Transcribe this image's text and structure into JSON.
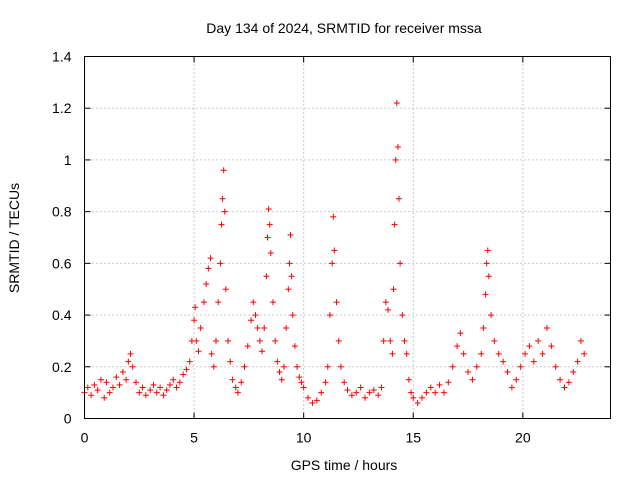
{
  "chart_data": {
    "type": "scatter",
    "title": "Day 134 of 2024, SRMTID for receiver mssa",
    "xlabel": "GPS time / hours",
    "ylabel": "SRMTID / TECUs",
    "xlim": [
      0,
      24
    ],
    "ylim": [
      0,
      1.4
    ],
    "xticks": [
      0,
      5,
      10,
      15,
      20
    ],
    "xtick_labels": [
      "0",
      "5",
      "10",
      "15",
      "20"
    ],
    "yticks": [
      0,
      0.2,
      0.4,
      0.6,
      0.8,
      1.0,
      1.2,
      1.4
    ],
    "ytick_labels": [
      "0",
      "0.2",
      "0.4",
      "0.6",
      "0.8",
      "1",
      "1.2",
      "1.4"
    ],
    "grid": true,
    "marker": "+",
    "color": "#ff0000",
    "series": [
      {
        "name": "SRMTID",
        "points": [
          [
            0.0,
            0.1
          ],
          [
            0.15,
            0.12
          ],
          [
            0.3,
            0.09
          ],
          [
            0.45,
            0.13
          ],
          [
            0.6,
            0.11
          ],
          [
            0.75,
            0.15
          ],
          [
            0.9,
            0.08
          ],
          [
            1.0,
            0.14
          ],
          [
            1.15,
            0.1
          ],
          [
            1.3,
            0.12
          ],
          [
            1.45,
            0.16
          ],
          [
            1.6,
            0.13
          ],
          [
            1.75,
            0.18
          ],
          [
            1.9,
            0.15
          ],
          [
            2.0,
            0.22
          ],
          [
            2.1,
            0.25
          ],
          [
            2.2,
            0.2
          ],
          [
            2.35,
            0.14
          ],
          [
            2.5,
            0.1
          ],
          [
            2.65,
            0.12
          ],
          [
            2.8,
            0.09
          ],
          [
            3.0,
            0.11
          ],
          [
            3.15,
            0.13
          ],
          [
            3.3,
            0.1
          ],
          [
            3.45,
            0.12
          ],
          [
            3.6,
            0.09
          ],
          [
            3.75,
            0.11
          ],
          [
            3.9,
            0.13
          ],
          [
            4.05,
            0.15
          ],
          [
            4.2,
            0.12
          ],
          [
            4.35,
            0.14
          ],
          [
            4.5,
            0.17
          ],
          [
            4.65,
            0.19
          ],
          [
            4.8,
            0.22
          ],
          [
            4.9,
            0.3
          ],
          [
            5.0,
            0.38
          ],
          [
            5.05,
            0.43
          ],
          [
            5.1,
            0.3
          ],
          [
            5.2,
            0.26
          ],
          [
            5.3,
            0.35
          ],
          [
            5.45,
            0.45
          ],
          [
            5.55,
            0.52
          ],
          [
            5.65,
            0.58
          ],
          [
            5.75,
            0.62
          ],
          [
            5.8,
            0.25
          ],
          [
            5.9,
            0.2
          ],
          [
            6.0,
            0.3
          ],
          [
            6.1,
            0.45
          ],
          [
            6.2,
            0.6
          ],
          [
            6.25,
            0.75
          ],
          [
            6.3,
            0.85
          ],
          [
            6.35,
            0.96
          ],
          [
            6.4,
            0.8
          ],
          [
            6.45,
            0.5
          ],
          [
            6.55,
            0.3
          ],
          [
            6.65,
            0.22
          ],
          [
            6.75,
            0.15
          ],
          [
            6.9,
            0.12
          ],
          [
            7.0,
            0.1
          ],
          [
            7.15,
            0.14
          ],
          [
            7.3,
            0.2
          ],
          [
            7.45,
            0.28
          ],
          [
            7.6,
            0.38
          ],
          [
            7.7,
            0.45
          ],
          [
            7.8,
            0.4
          ],
          [
            7.9,
            0.35
          ],
          [
            8.0,
            0.3
          ],
          [
            8.1,
            0.26
          ],
          [
            8.2,
            0.35
          ],
          [
            8.3,
            0.55
          ],
          [
            8.35,
            0.7
          ],
          [
            8.4,
            0.81
          ],
          [
            8.45,
            0.75
          ],
          [
            8.5,
            0.64
          ],
          [
            8.6,
            0.45
          ],
          [
            8.7,
            0.3
          ],
          [
            8.8,
            0.22
          ],
          [
            8.9,
            0.18
          ],
          [
            9.0,
            0.15
          ],
          [
            9.1,
            0.2
          ],
          [
            9.2,
            0.35
          ],
          [
            9.3,
            0.5
          ],
          [
            9.35,
            0.6
          ],
          [
            9.4,
            0.71
          ],
          [
            9.45,
            0.55
          ],
          [
            9.5,
            0.4
          ],
          [
            9.6,
            0.28
          ],
          [
            9.7,
            0.2
          ],
          [
            9.8,
            0.16
          ],
          [
            9.9,
            0.14
          ],
          [
            10.0,
            0.12
          ],
          [
            10.2,
            0.08
          ],
          [
            10.4,
            0.06
          ],
          [
            10.6,
            0.07
          ],
          [
            10.8,
            0.1
          ],
          [
            11.0,
            0.14
          ],
          [
            11.1,
            0.2
          ],
          [
            11.2,
            0.4
          ],
          [
            11.3,
            0.6
          ],
          [
            11.35,
            0.78
          ],
          [
            11.4,
            0.65
          ],
          [
            11.5,
            0.45
          ],
          [
            11.6,
            0.3
          ],
          [
            11.7,
            0.2
          ],
          [
            11.85,
            0.14
          ],
          [
            12.0,
            0.11
          ],
          [
            12.2,
            0.09
          ],
          [
            12.4,
            0.1
          ],
          [
            12.6,
            0.12
          ],
          [
            12.8,
            0.08
          ],
          [
            13.0,
            0.1
          ],
          [
            13.2,
            0.11
          ],
          [
            13.4,
            0.09
          ],
          [
            13.55,
            0.12
          ],
          [
            13.65,
            0.3
          ],
          [
            13.75,
            0.45
          ],
          [
            13.85,
            0.42
          ],
          [
            13.95,
            0.3
          ],
          [
            14.05,
            0.25
          ],
          [
            14.1,
            0.5
          ],
          [
            14.15,
            0.75
          ],
          [
            14.2,
            1.0
          ],
          [
            14.25,
            1.22
          ],
          [
            14.3,
            1.05
          ],
          [
            14.35,
            0.85
          ],
          [
            14.4,
            0.6
          ],
          [
            14.5,
            0.4
          ],
          [
            14.6,
            0.3
          ],
          [
            14.7,
            0.25
          ],
          [
            14.8,
            0.15
          ],
          [
            14.9,
            0.1
          ],
          [
            15.0,
            0.08
          ],
          [
            15.2,
            0.06
          ],
          [
            15.4,
            0.08
          ],
          [
            15.6,
            0.1
          ],
          [
            15.8,
            0.12
          ],
          [
            16.0,
            0.1
          ],
          [
            16.2,
            0.13
          ],
          [
            16.4,
            0.1
          ],
          [
            16.6,
            0.14
          ],
          [
            16.8,
            0.2
          ],
          [
            17.0,
            0.28
          ],
          [
            17.15,
            0.33
          ],
          [
            17.3,
            0.25
          ],
          [
            17.5,
            0.18
          ],
          [
            17.7,
            0.15
          ],
          [
            17.9,
            0.2
          ],
          [
            18.1,
            0.25
          ],
          [
            18.2,
            0.35
          ],
          [
            18.3,
            0.48
          ],
          [
            18.35,
            0.6
          ],
          [
            18.4,
            0.65
          ],
          [
            18.45,
            0.55
          ],
          [
            18.55,
            0.4
          ],
          [
            18.7,
            0.3
          ],
          [
            18.9,
            0.25
          ],
          [
            19.1,
            0.22
          ],
          [
            19.3,
            0.18
          ],
          [
            19.5,
            0.12
          ],
          [
            19.7,
            0.15
          ],
          [
            19.9,
            0.2
          ],
          [
            20.1,
            0.25
          ],
          [
            20.3,
            0.28
          ],
          [
            20.5,
            0.22
          ],
          [
            20.7,
            0.3
          ],
          [
            20.9,
            0.25
          ],
          [
            21.1,
            0.35
          ],
          [
            21.3,
            0.28
          ],
          [
            21.5,
            0.2
          ],
          [
            21.7,
            0.15
          ],
          [
            21.9,
            0.12
          ],
          [
            22.1,
            0.14
          ],
          [
            22.3,
            0.18
          ],
          [
            22.5,
            0.22
          ],
          [
            22.65,
            0.3
          ],
          [
            22.8,
            0.25
          ]
        ]
      }
    ]
  }
}
